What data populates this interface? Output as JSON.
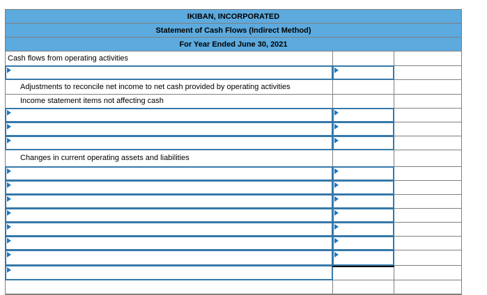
{
  "header": {
    "company": "IKIBAN, INCORPORATED",
    "statement_title": "Statement of Cash Flows (Indirect Method)",
    "period": "For Year Ended June 30, 2021"
  },
  "rows": [
    {
      "type": "label",
      "indent": 0,
      "text": "Cash flows from operating activities"
    },
    {
      "type": "input"
    },
    {
      "type": "label",
      "indent": 1,
      "text": "Adjustments to reconcile net income to net cash provided by operating activities"
    },
    {
      "type": "label",
      "indent": 1,
      "text": "Income statement items not affecting cash"
    },
    {
      "type": "input"
    },
    {
      "type": "input"
    },
    {
      "type": "input"
    },
    {
      "type": "label",
      "indent": 1,
      "text": "Changes in current operating assets and liabilities"
    },
    {
      "type": "input"
    },
    {
      "type": "input"
    },
    {
      "type": "input"
    },
    {
      "type": "input"
    },
    {
      "type": "input"
    },
    {
      "type": "input"
    },
    {
      "type": "input",
      "underline_amount": true
    },
    {
      "type": "input_desc_only"
    },
    {
      "type": "empty"
    }
  ],
  "input_cells": {
    "value": "",
    "placeholder": ""
  },
  "icons": {
    "cell_marker": "caret-right-icon"
  },
  "colors": {
    "header_bg": "#5caade",
    "grid": "#7f7f7f",
    "input_border": "#3578a9",
    "marker": "#1c77c4",
    "underline": "#000000",
    "text": "#000000"
  }
}
